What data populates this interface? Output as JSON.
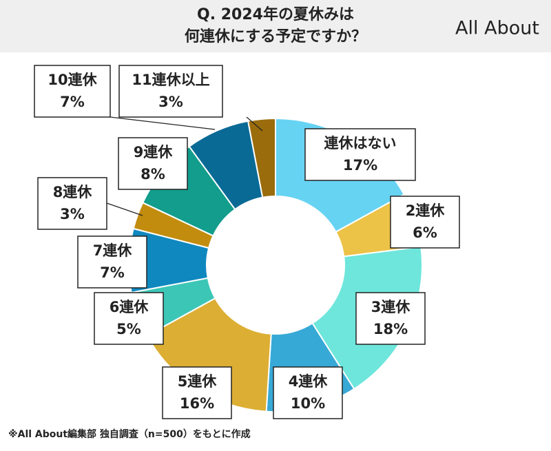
{
  "chart_data": {
    "type": "pie",
    "title": [
      "Q. 2024年の夏休みは",
      "何連休にする予定ですか？"
    ],
    "logo": "All About",
    "source": "※All About編集部 独自調査（n=500）をもとに作成",
    "categories": [
      "連休はない",
      "2連休",
      "3連休",
      "4連休",
      "5連休",
      "6連休",
      "7連休",
      "8連休",
      "9連休",
      "10連休",
      "11連休以上"
    ],
    "values": [
      17,
      6,
      18,
      10,
      16,
      5,
      7,
      3,
      8,
      7,
      3
    ],
    "value_labels": [
      "17%",
      "6%",
      "18%",
      "10%",
      "16%",
      "5%",
      "7%",
      "3%",
      "8%",
      "7%",
      "3%"
    ],
    "colors": [
      "#66d3f3",
      "#ecc247",
      "#6ee6dc",
      "#37a9d6",
      "#dcae33",
      "#3cc6b6",
      "#0f88bf",
      "#c28d0f",
      "#129d8c",
      "#0a6a96",
      "#9a6c0b"
    ]
  }
}
